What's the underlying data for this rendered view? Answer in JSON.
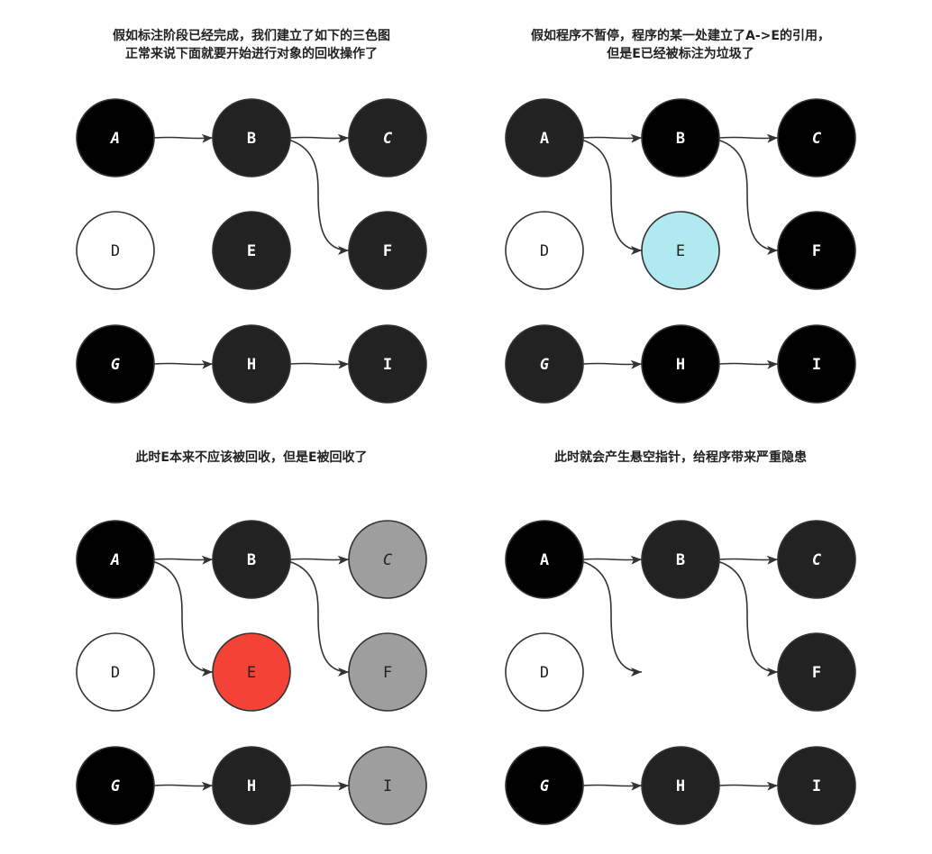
{
  "colors": {
    "black": "#000000",
    "dark": "#222222",
    "white": "#ffffff",
    "gray": "#9e9e9e",
    "cyan": "#b1e9f1",
    "red": "#f44336",
    "stroke": "#333333",
    "edge": "#333333"
  },
  "panels": [
    {
      "id": "panel-1",
      "title_lines": [
        "假如标注阶段已经完成，我们建立了如下的三色图",
        "正常来说下面就要开始进行对象的回收操作了"
      ],
      "nodes": [
        {
          "id": "A",
          "label": "A",
          "fill": "black",
          "text": "white",
          "bold": true,
          "italic": true
        },
        {
          "id": "B",
          "label": "B",
          "fill": "dark",
          "text": "white",
          "bold": true,
          "italic": false
        },
        {
          "id": "C",
          "label": "C",
          "fill": "dark",
          "text": "white",
          "bold": true,
          "italic": true
        },
        {
          "id": "D",
          "label": "D",
          "fill": "white",
          "text": "dark",
          "bold": false,
          "italic": false
        },
        {
          "id": "E",
          "label": "E",
          "fill": "dark",
          "text": "white",
          "bold": true,
          "italic": false
        },
        {
          "id": "F",
          "label": "F",
          "fill": "dark",
          "text": "white",
          "bold": true,
          "italic": false
        },
        {
          "id": "G",
          "label": "G",
          "fill": "black",
          "text": "white",
          "bold": true,
          "italic": true
        },
        {
          "id": "H",
          "label": "H",
          "fill": "dark",
          "text": "white",
          "bold": true,
          "italic": false
        },
        {
          "id": "I",
          "label": "I",
          "fill": "dark",
          "text": "white",
          "bold": true,
          "italic": false
        }
      ],
      "edges": [
        {
          "from": "A",
          "to": "B"
        },
        {
          "from": "B",
          "to": "C"
        },
        {
          "from": "B",
          "to": "F"
        },
        {
          "from": "G",
          "to": "H"
        },
        {
          "from": "H",
          "to": "I"
        }
      ]
    },
    {
      "id": "panel-2",
      "title_lines": [
        "假如程序不暂停，程序的某一处建立了A->E的引用，",
        "但是E已经被标注为垃圾了"
      ],
      "nodes": [
        {
          "id": "A",
          "label": "A",
          "fill": "dark",
          "text": "white",
          "bold": true,
          "italic": false
        },
        {
          "id": "B",
          "label": "B",
          "fill": "black",
          "text": "white",
          "bold": true,
          "italic": false
        },
        {
          "id": "C",
          "label": "C",
          "fill": "black",
          "text": "white",
          "bold": true,
          "italic": true
        },
        {
          "id": "D",
          "label": "D",
          "fill": "white",
          "text": "dark",
          "bold": false,
          "italic": false
        },
        {
          "id": "E",
          "label": "E",
          "fill": "cyan",
          "text": "dark",
          "bold": false,
          "italic": false
        },
        {
          "id": "F",
          "label": "F",
          "fill": "black",
          "text": "white",
          "bold": true,
          "italic": false
        },
        {
          "id": "G",
          "label": "G",
          "fill": "dark",
          "text": "white",
          "bold": true,
          "italic": true
        },
        {
          "id": "H",
          "label": "H",
          "fill": "black",
          "text": "white",
          "bold": true,
          "italic": false
        },
        {
          "id": "I",
          "label": "I",
          "fill": "black",
          "text": "white",
          "bold": true,
          "italic": false
        }
      ],
      "edges": [
        {
          "from": "A",
          "to": "B"
        },
        {
          "from": "A",
          "to": "E"
        },
        {
          "from": "B",
          "to": "C"
        },
        {
          "from": "B",
          "to": "F"
        },
        {
          "from": "G",
          "to": "H"
        },
        {
          "from": "H",
          "to": "I"
        }
      ]
    },
    {
      "id": "panel-3",
      "title_lines": [
        "此时E本来不应该被回收，但是E被回收了"
      ],
      "nodes": [
        {
          "id": "A",
          "label": "A",
          "fill": "black",
          "text": "white",
          "bold": true,
          "italic": true
        },
        {
          "id": "B",
          "label": "B",
          "fill": "dark",
          "text": "white",
          "bold": true,
          "italic": false
        },
        {
          "id": "C",
          "label": "C",
          "fill": "gray",
          "text": "dark",
          "bold": false,
          "italic": true
        },
        {
          "id": "D",
          "label": "D",
          "fill": "white",
          "text": "dark",
          "bold": false,
          "italic": false
        },
        {
          "id": "E",
          "label": "E",
          "fill": "red",
          "text": "dark",
          "bold": false,
          "italic": false
        },
        {
          "id": "F",
          "label": "F",
          "fill": "gray",
          "text": "dark",
          "bold": false,
          "italic": false
        },
        {
          "id": "G",
          "label": "G",
          "fill": "black",
          "text": "white",
          "bold": true,
          "italic": true
        },
        {
          "id": "H",
          "label": "H",
          "fill": "dark",
          "text": "white",
          "bold": true,
          "italic": false
        },
        {
          "id": "I",
          "label": "I",
          "fill": "gray",
          "text": "dark",
          "bold": false,
          "italic": false
        }
      ],
      "edges": [
        {
          "from": "A",
          "to": "B"
        },
        {
          "from": "A",
          "to": "E"
        },
        {
          "from": "B",
          "to": "C"
        },
        {
          "from": "B",
          "to": "F"
        },
        {
          "from": "G",
          "to": "H"
        },
        {
          "from": "H",
          "to": "I"
        }
      ]
    },
    {
      "id": "panel-4",
      "title_lines": [
        "此时就会产生悬空指针，给程序带来严重隐患"
      ],
      "nodes": [
        {
          "id": "A",
          "label": "A",
          "fill": "black",
          "text": "white",
          "bold": true,
          "italic": false
        },
        {
          "id": "B",
          "label": "B",
          "fill": "dark",
          "text": "white",
          "bold": true,
          "italic": false
        },
        {
          "id": "C",
          "label": "C",
          "fill": "dark",
          "text": "white",
          "bold": true,
          "italic": true
        },
        {
          "id": "D",
          "label": "D",
          "fill": "white",
          "text": "dark",
          "bold": false,
          "italic": false
        },
        {
          "id": "F",
          "label": "F",
          "fill": "dark",
          "text": "white",
          "bold": true,
          "italic": false
        },
        {
          "id": "G",
          "label": "G",
          "fill": "black",
          "text": "white",
          "bold": true,
          "italic": true
        },
        {
          "id": "H",
          "label": "H",
          "fill": "dark",
          "text": "white",
          "bold": true,
          "italic": false
        },
        {
          "id": "I",
          "label": "I",
          "fill": "dark",
          "text": "white",
          "bold": true,
          "italic": false
        }
      ],
      "edges": [
        {
          "from": "A",
          "to": "B"
        },
        {
          "from": "A",
          "to": "E"
        },
        {
          "from": "B",
          "to": "C"
        },
        {
          "from": "B",
          "to": "F"
        },
        {
          "from": "G",
          "to": "H"
        },
        {
          "from": "H",
          "to": "I"
        }
      ]
    }
  ]
}
